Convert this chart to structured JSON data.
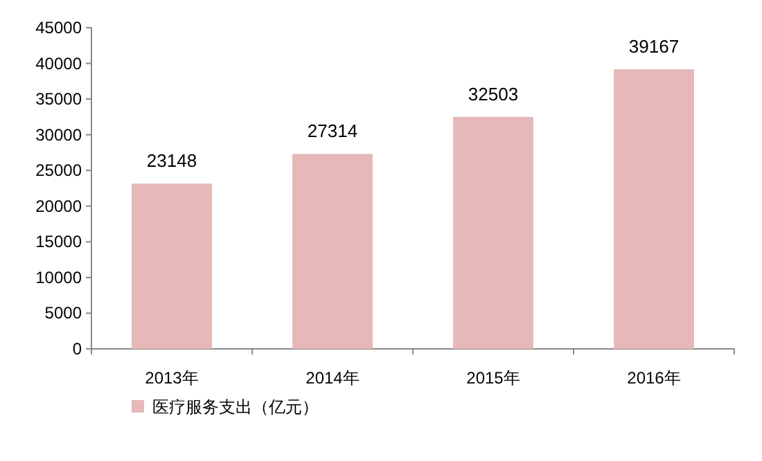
{
  "chart_data": {
    "type": "bar",
    "categories": [
      "2013年",
      "2014年",
      "2015年",
      "2016年"
    ],
    "series": [
      {
        "name": "医疗服务支出（亿元）",
        "color": "#e6b9b8",
        "values": [
          23148,
          27314,
          32503,
          39167
        ]
      }
    ],
    "ylim": [
      0,
      45000
    ],
    "yticks": [
      0,
      5000,
      10000,
      15000,
      20000,
      25000,
      30000,
      35000,
      40000,
      45000
    ],
    "data_labels": true,
    "legend": "bottom left"
  }
}
